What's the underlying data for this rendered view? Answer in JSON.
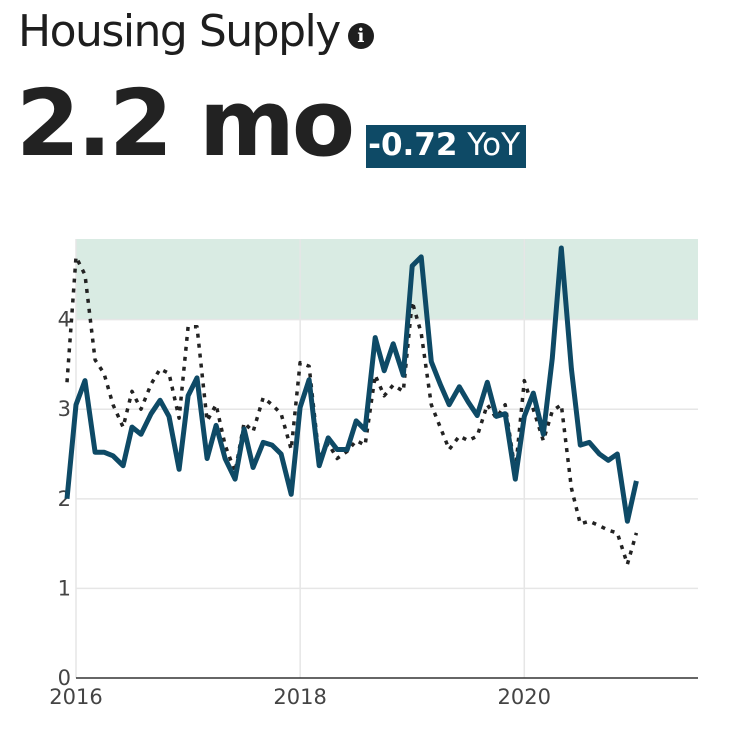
{
  "header": {
    "title": "Housing Supply",
    "info_icon": "info-icon",
    "value": "2.2 mo",
    "change_value": "-0.72",
    "change_unit": "YoY"
  },
  "colors": {
    "current_series": "#0e4a66",
    "prior_year_series": "#222222",
    "highlight_band": "#d9ebe3",
    "badge": "#0e4a66",
    "grid": "#e6e6e6"
  },
  "chart_data": {
    "type": "line",
    "title": "",
    "xlabel": "",
    "ylabel": "",
    "xlim": [
      2016,
      2021.55
    ],
    "ylim": [
      0,
      4.9
    ],
    "x_ticks": [
      "2016",
      "2018",
      "2020"
    ],
    "y_ticks": [
      "0",
      "1",
      "2",
      "3",
      "4"
    ],
    "grid": true,
    "highlight_band": {
      "y_from": 4,
      "y_to": 4.9
    },
    "x": [
      2015.92,
      2016.0,
      2016.08,
      2016.17,
      2016.25,
      2016.33,
      2016.42,
      2016.5,
      2016.58,
      2016.67,
      2016.75,
      2016.83,
      2016.92,
      2017.0,
      2017.08,
      2017.17,
      2017.25,
      2017.33,
      2017.42,
      2017.5,
      2017.58,
      2017.67,
      2017.75,
      2017.83,
      2017.92,
      2018.0,
      2018.08,
      2018.17,
      2018.25,
      2018.33,
      2018.42,
      2018.5,
      2018.58,
      2018.67,
      2018.75,
      2018.83,
      2018.92,
      2019.0,
      2019.08,
      2019.17,
      2019.25,
      2019.33,
      2019.42,
      2019.5,
      2019.58,
      2019.67,
      2019.75,
      2019.83,
      2019.92,
      2020.0,
      2020.08,
      2020.17,
      2020.25,
      2020.33,
      2020.42,
      2020.5,
      2020.58,
      2020.67,
      2020.75,
      2020.83,
      2020.92,
      2021.0
    ],
    "series": [
      {
        "values": [
          2.0,
          3.05,
          3.32,
          2.52,
          2.52,
          2.48,
          2.37,
          2.8,
          2.72,
          2.95,
          3.1,
          2.92,
          2.33,
          3.15,
          3.35,
          2.45,
          2.82,
          2.45,
          2.22,
          2.78,
          2.35,
          2.63,
          2.6,
          2.5,
          2.05,
          3.02,
          3.33,
          2.37,
          2.68,
          2.55,
          2.55,
          2.87,
          2.77,
          3.8,
          3.43,
          3.73,
          3.38,
          4.6,
          4.7,
          3.53,
          3.28,
          3.05,
          3.25,
          3.08,
          2.93,
          3.3,
          2.92,
          2.95,
          2.22,
          2.92,
          3.18,
          2.72,
          3.57,
          4.8,
          3.45,
          2.6,
          2.63,
          2.5,
          2.43,
          2.5,
          1.75,
          2.2
        ]
      },
      {
        "values": [
          3.3,
          4.7,
          4.5,
          3.55,
          3.4,
          3.05,
          2.8,
          3.2,
          3.0,
          3.28,
          3.45,
          3.4,
          2.9,
          3.92,
          3.92,
          2.87,
          3.05,
          2.6,
          2.3,
          2.85,
          2.75,
          3.13,
          3.05,
          2.95,
          2.55,
          3.52,
          3.48,
          2.45,
          2.62,
          2.45,
          2.53,
          2.65,
          2.6,
          3.38,
          3.15,
          3.27,
          3.2,
          4.2,
          3.85,
          3.05,
          2.8,
          2.55,
          2.7,
          2.65,
          2.7,
          3.05,
          2.9,
          3.05,
          2.3,
          3.32,
          3.0,
          2.65,
          2.98,
          3.05,
          2.12,
          1.72,
          1.75,
          1.7,
          1.65,
          1.62,
          1.27,
          1.62
        ]
      }
    ]
  }
}
